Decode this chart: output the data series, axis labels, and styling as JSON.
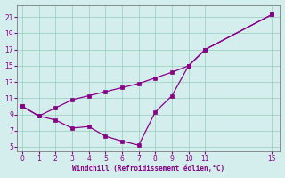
{
  "xlabel": "Windchill (Refroidissement éolien,°C)",
  "bg_color": "#d4eeed",
  "line_color": "#880088",
  "xlim": [
    -0.3,
    15.5
  ],
  "ylim": [
    4.5,
    22.5
  ],
  "yticks": [
    5,
    7,
    9,
    11,
    13,
    15,
    17,
    19,
    21
  ],
  "xticks": [
    0,
    1,
    2,
    3,
    4,
    5,
    6,
    7,
    8,
    9,
    10,
    11,
    15
  ],
  "x_temp": [
    0,
    1,
    2,
    3,
    4,
    5,
    6,
    7,
    8,
    9,
    10,
    11,
    15
  ],
  "y_temp": [
    10.0,
    8.8,
    9.8,
    10.8,
    11.3,
    11.8,
    12.3,
    12.8,
    13.5,
    14.2,
    15.0,
    17.0,
    21.3
  ],
  "x_wc": [
    0,
    1,
    2,
    3,
    4,
    5,
    6,
    7,
    8,
    9,
    10,
    11,
    15
  ],
  "y_wc": [
    10.0,
    8.8,
    8.3,
    7.3,
    7.5,
    6.3,
    5.7,
    5.2,
    9.3,
    11.3,
    15.0,
    17.0,
    21.3
  ]
}
